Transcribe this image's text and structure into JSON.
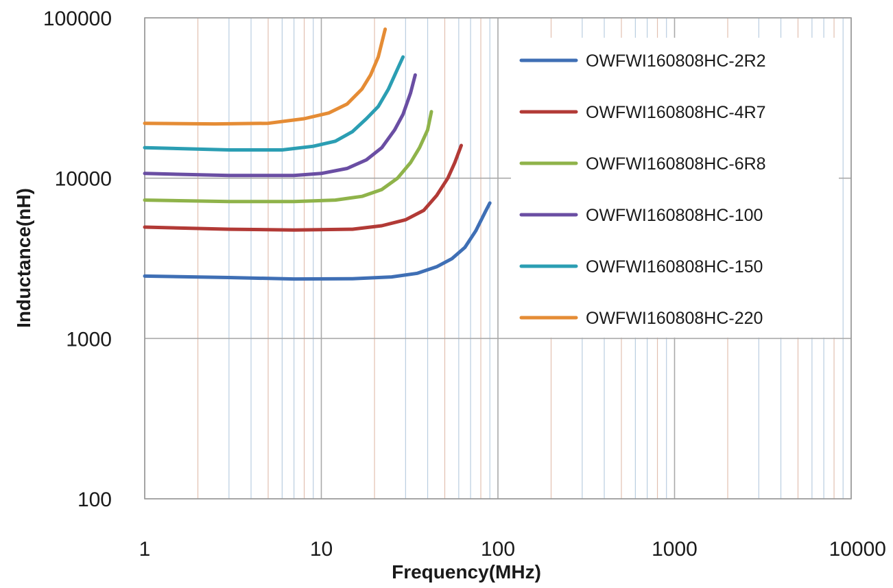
{
  "chart_data": {
    "type": "line",
    "title": "",
    "xlabel": "Frequency(MHz)",
    "ylabel": "Inductance(nH)",
    "x_scale": "log",
    "y_scale": "log",
    "xlim": [
      1,
      10000
    ],
    "ylim": [
      100,
      100000
    ],
    "x_ticks": [
      1,
      10,
      100,
      1000,
      10000
    ],
    "y_ticks": [
      100,
      1000,
      10000,
      100000
    ],
    "x_tick_labels": [
      "1",
      "10",
      "100",
      "1000",
      "10000"
    ],
    "y_tick_labels": [
      "100",
      "1000",
      "10000",
      "100000"
    ],
    "grid": true,
    "legend_position": "top-right",
    "series": [
      {
        "name": "OWFWI160808HC-2R2",
        "color": "#3f6fb5",
        "points": [
          [
            1,
            2450
          ],
          [
            3,
            2400
          ],
          [
            7,
            2350
          ],
          [
            15,
            2360
          ],
          [
            25,
            2420
          ],
          [
            35,
            2550
          ],
          [
            45,
            2800
          ],
          [
            55,
            3150
          ],
          [
            65,
            3700
          ],
          [
            75,
            4700
          ],
          [
            85,
            6200
          ],
          [
            90,
            7000
          ]
        ]
      },
      {
        "name": "OWFWI160808HC-4R7",
        "color": "#b23a36",
        "points": [
          [
            1,
            4950
          ],
          [
            3,
            4800
          ],
          [
            7,
            4750
          ],
          [
            15,
            4800
          ],
          [
            22,
            5050
          ],
          [
            30,
            5500
          ],
          [
            38,
            6300
          ],
          [
            45,
            7800
          ],
          [
            52,
            10000
          ],
          [
            57,
            12500
          ],
          [
            62,
            16000
          ]
        ]
      },
      {
        "name": "OWFWI160808HC-6R8",
        "color": "#8fb34a",
        "points": [
          [
            1,
            7300
          ],
          [
            3,
            7150
          ],
          [
            7,
            7150
          ],
          [
            12,
            7300
          ],
          [
            17,
            7700
          ],
          [
            22,
            8500
          ],
          [
            27,
            10000
          ],
          [
            32,
            12500
          ],
          [
            36,
            15500
          ],
          [
            40,
            20000
          ],
          [
            42,
            26000
          ]
        ]
      },
      {
        "name": "OWFWI160808HC-100",
        "color": "#6a4ea3",
        "points": [
          [
            1,
            10700
          ],
          [
            3,
            10400
          ],
          [
            7,
            10400
          ],
          [
            10,
            10700
          ],
          [
            14,
            11500
          ],
          [
            18,
            13000
          ],
          [
            22,
            15500
          ],
          [
            26,
            20000
          ],
          [
            29,
            25000
          ],
          [
            32,
            34000
          ],
          [
            34,
            44000
          ]
        ]
      },
      {
        "name": "OWFWI160808HC-150",
        "color": "#2b9eb3",
        "points": [
          [
            1,
            15500
          ],
          [
            3,
            15000
          ],
          [
            6,
            15000
          ],
          [
            9,
            15800
          ],
          [
            12,
            17000
          ],
          [
            15,
            19500
          ],
          [
            18,
            23500
          ],
          [
            21,
            28000
          ],
          [
            24,
            36000
          ],
          [
            27,
            48000
          ],
          [
            29,
            57000
          ]
        ]
      },
      {
        "name": "OWFWI160808HC-220",
        "color": "#e58c35",
        "points": [
          [
            1,
            22000
          ],
          [
            2.5,
            21800
          ],
          [
            5,
            22000
          ],
          [
            8,
            23500
          ],
          [
            11,
            25500
          ],
          [
            14,
            29000
          ],
          [
            17,
            36000
          ],
          [
            19,
            44000
          ],
          [
            21,
            57000
          ],
          [
            23,
            85000
          ]
        ]
      }
    ]
  }
}
